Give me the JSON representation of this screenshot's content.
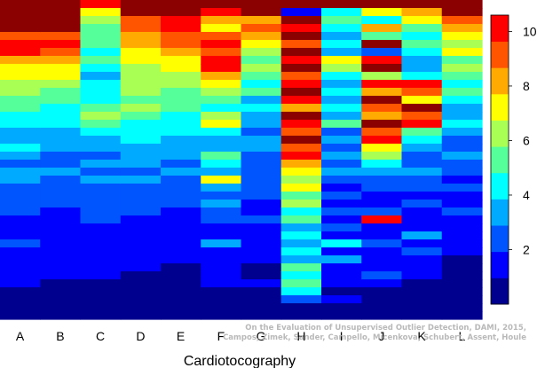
{
  "chart_data": {
    "type": "heatmap",
    "title": "",
    "xlabel": "Cardiotocography",
    "ylabel": "",
    "categories": [
      "A",
      "B",
      "C",
      "D",
      "E",
      "F",
      "G",
      "H",
      "I",
      "J",
      "K",
      "L"
    ],
    "rows": 40,
    "colorbar": {
      "range": [
        0,
        10.6
      ],
      "ticks": [
        2,
        4,
        6,
        8,
        10
      ],
      "levels": 11
    },
    "colormap": [
      "#00008f",
      "#0000ff",
      "#0055ff",
      "#00aaff",
      "#00ffff",
      "#55ff99",
      "#aaff55",
      "#ffff00",
      "#ffaa00",
      "#ff5500",
      "#ff0000",
      "#8b0000"
    ],
    "columns": [
      {
        "category": "A",
        "values": [
          11,
          11,
          11,
          11,
          9,
          10,
          10,
          8,
          7,
          7,
          6,
          6,
          5,
          5,
          4,
          4,
          3,
          3,
          4,
          3,
          2,
          3,
          3,
          2,
          2,
          2,
          2,
          1,
          1,
          1,
          2,
          1,
          1,
          1,
          1,
          1,
          0,
          0,
          0,
          0
        ]
      },
      {
        "category": "B",
        "values": [
          11,
          11,
          11,
          11,
          9,
          10,
          9,
          8,
          7,
          7,
          6,
          5,
          5,
          4,
          4,
          4,
          3,
          3,
          3,
          2,
          2,
          3,
          2,
          2,
          2,
          2,
          1,
          1,
          1,
          1,
          1,
          1,
          1,
          1,
          1,
          0,
          0,
          0,
          0,
          0
        ]
      },
      {
        "category": "C",
        "values": [
          10,
          7,
          6,
          5,
          5,
          5,
          4,
          5,
          4,
          3,
          4,
          4,
          4,
          5,
          6,
          5,
          4,
          3,
          3,
          2,
          3,
          2,
          3,
          2,
          2,
          2,
          2,
          2,
          1,
          1,
          1,
          1,
          1,
          1,
          1,
          0,
          0,
          0,
          0,
          0
        ]
      },
      {
        "category": "D",
        "values": [
          11,
          11,
          9,
          9,
          8,
          8,
          7,
          7,
          6,
          6,
          6,
          6,
          5,
          6,
          5,
          4,
          4,
          4,
          3,
          3,
          3,
          2,
          3,
          2,
          2,
          2,
          2,
          1,
          1,
          1,
          1,
          1,
          1,
          1,
          0,
          0,
          0,
          0,
          0,
          0
        ]
      },
      {
        "category": "E",
        "values": [
          11,
          11,
          10,
          10,
          9,
          9,
          8,
          7,
          7,
          6,
          6,
          5,
          5,
          5,
          4,
          4,
          4,
          3,
          3,
          3,
          2,
          3,
          2,
          2,
          2,
          2,
          1,
          1,
          1,
          1,
          1,
          1,
          1,
          0,
          0,
          0,
          0,
          0,
          0,
          0
        ]
      },
      {
        "category": "F",
        "values": [
          11,
          10,
          8,
          7,
          9,
          10,
          9,
          10,
          10,
          8,
          7,
          6,
          5,
          4,
          6,
          7,
          4,
          3,
          3,
          5,
          4,
          3,
          7,
          3,
          2,
          3,
          2,
          2,
          1,
          1,
          3,
          1,
          1,
          1,
          1,
          1,
          0,
          0,
          0,
          0
        ]
      },
      {
        "category": "G",
        "values": [
          11,
          11,
          8,
          9,
          8,
          7,
          6,
          5,
          6,
          5,
          4,
          5,
          3,
          4,
          3,
          3,
          2,
          3,
          3,
          2,
          2,
          2,
          2,
          2,
          2,
          1,
          1,
          2,
          1,
          1,
          1,
          1,
          1,
          0,
          0,
          1,
          0,
          0,
          0,
          0
        ]
      },
      {
        "category": "H",
        "values": [
          11,
          1,
          11,
          10,
          11,
          9,
          11,
          10,
          11,
          9,
          10,
          11,
          10,
          8,
          11,
          10,
          9,
          11,
          9,
          10,
          8,
          7,
          6,
          7,
          5,
          6,
          4,
          5,
          3,
          4,
          3,
          4,
          3,
          5,
          4,
          5,
          4,
          2,
          0,
          0
        ]
      },
      {
        "category": "I",
        "values": [
          11,
          4,
          5,
          4,
          3,
          4,
          3,
          7,
          6,
          4,
          3,
          4,
          3,
          4,
          3,
          5,
          2,
          3,
          2,
          3,
          2,
          3,
          2,
          1,
          2,
          1,
          2,
          1,
          2,
          1,
          4,
          1,
          3,
          1,
          1,
          1,
          0,
          1,
          0,
          0
        ]
      },
      {
        "category": "J",
        "values": [
          11,
          7,
          4,
          8,
          5,
          11,
          2,
          10,
          11,
          6,
          10,
          8,
          11,
          9,
          8,
          11,
          9,
          10,
          7,
          6,
          4,
          3,
          2,
          2,
          1,
          1,
          2,
          10,
          1,
          1,
          2,
          1,
          1,
          1,
          2,
          1,
          0,
          0,
          0,
          0
        ]
      },
      {
        "category": "K",
        "values": [
          11,
          8,
          7,
          5,
          4,
          5,
          4,
          3,
          3,
          4,
          10,
          9,
          7,
          11,
          9,
          10,
          5,
          4,
          3,
          2,
          2,
          3,
          2,
          2,
          1,
          2,
          1,
          1,
          1,
          3,
          1,
          2,
          1,
          1,
          1,
          0,
          0,
          0,
          0,
          0
        ]
      },
      {
        "category": "L",
        "values": [
          11,
          11,
          9,
          8,
          7,
          6,
          7,
          5,
          6,
          5,
          4,
          5,
          4,
          3,
          3,
          4,
          3,
          2,
          2,
          3,
          2,
          2,
          1,
          2,
          1,
          1,
          2,
          1,
          1,
          1,
          1,
          1,
          0,
          0,
          0,
          0,
          0,
          0,
          0,
          0
        ]
      }
    ]
  },
  "credit_lines": [
    "On the Evaluation of Unsupervised Outlier Detection, DAMI, 2015,",
    "Campos, Zimek, Sander, Campello, Micenkova, Schubert, Assent, Houle"
  ]
}
